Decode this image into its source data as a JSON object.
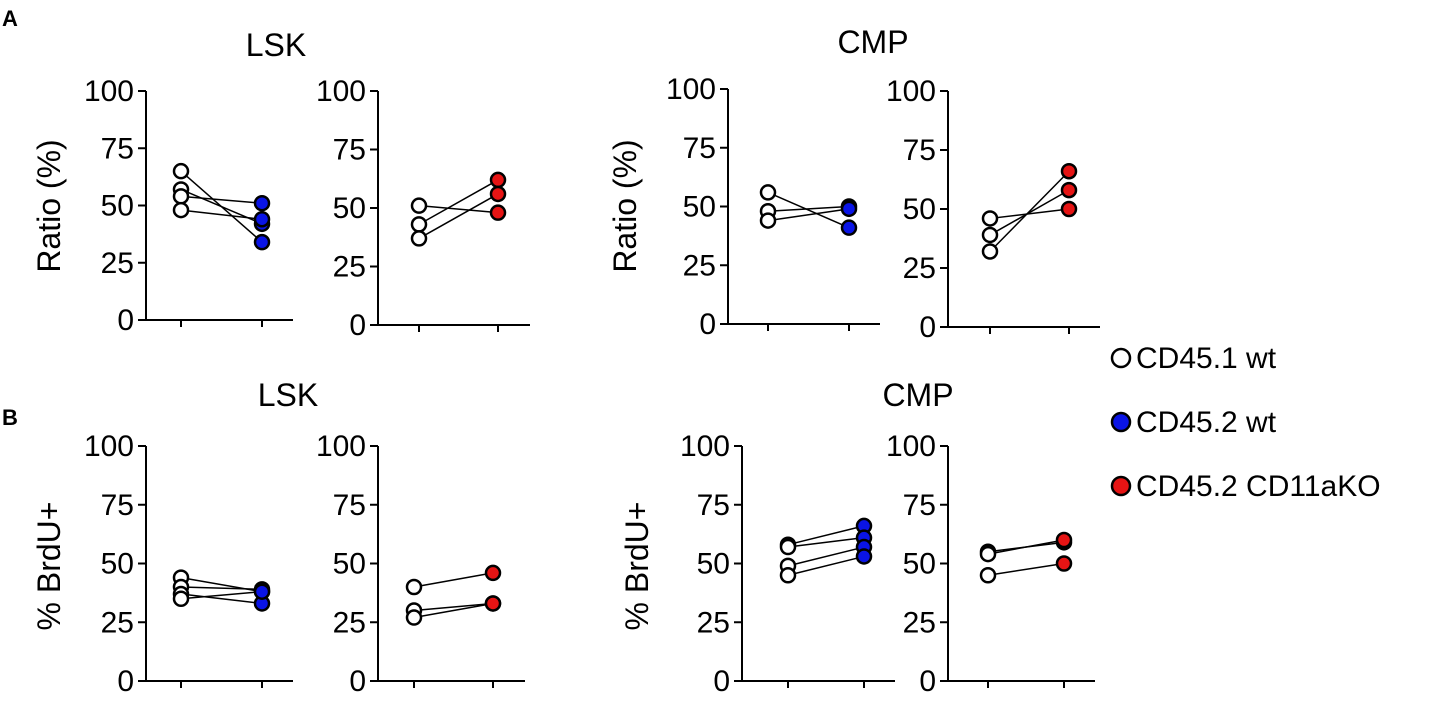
{
  "panel_letters": {
    "a": "A",
    "b": "B"
  },
  "titles": {
    "a_left": "LSK",
    "a_right": "CMP",
    "b_left": "LSK",
    "b_right": "CMP"
  },
  "y_labels": {
    "a": "Ratio (%)",
    "b": "% BrdU+"
  },
  "legend": [
    {
      "label": "CD45.1 wt",
      "fill": "#ffffff"
    },
    {
      "label": "CD45.2 wt",
      "fill": "#0a14e6"
    },
    {
      "label": "CD45.2 CD11aKO",
      "fill": "#e61414"
    }
  ],
  "colors": {
    "wt1": "#ffffff",
    "wt2": "#0a14e6",
    "ko": "#e61414",
    "stroke": "#000000"
  },
  "chart_data": [
    {
      "id": "A-LSK-wt",
      "type": "scatter",
      "panel": "A",
      "title": "LSK",
      "ylabel": "Ratio (%)",
      "ylim": [
        0,
        100
      ],
      "yticks": [
        0,
        25,
        50,
        75,
        100
      ],
      "groups": [
        "CD45.1 wt",
        "CD45.2 wt"
      ],
      "pairs": [
        [
          65,
          34
        ],
        [
          57,
          42
        ],
        [
          54,
          51
        ],
        [
          48,
          44
        ]
      ]
    },
    {
      "id": "A-LSK-ko",
      "type": "scatter",
      "panel": "A",
      "title": "LSK",
      "ylabel": "",
      "ylim": [
        0,
        100
      ],
      "yticks": [
        0,
        25,
        50,
        75,
        100
      ],
      "groups": [
        "CD45.1 wt",
        "CD45.2 CD11aKO"
      ],
      "pairs": [
        [
          51,
          48
        ],
        [
          43,
          62
        ],
        [
          37,
          56
        ]
      ]
    },
    {
      "id": "A-CMP-wt",
      "type": "scatter",
      "panel": "A",
      "title": "CMP",
      "ylabel": "Ratio (%)",
      "ylim": [
        0,
        100
      ],
      "yticks": [
        0,
        25,
        50,
        75,
        100
      ],
      "groups": [
        "CD45.1 wt",
        "CD45.2 wt"
      ],
      "pairs": [
        [
          56,
          41
        ],
        [
          48,
          50
        ],
        [
          44,
          49
        ]
      ]
    },
    {
      "id": "A-CMP-ko",
      "type": "scatter",
      "panel": "A",
      "title": "CMP",
      "ylabel": "",
      "ylim": [
        0,
        100
      ],
      "yticks": [
        0,
        25,
        50,
        75,
        100
      ],
      "groups": [
        "CD45.1 wt",
        "CD45.2 CD11aKO"
      ],
      "pairs": [
        [
          46,
          50
        ],
        [
          39,
          58
        ],
        [
          32,
          66
        ]
      ]
    },
    {
      "id": "B-LSK-wt",
      "type": "scatter",
      "panel": "B",
      "title": "LSK",
      "ylabel": "% BrdU+",
      "ylim": [
        0,
        100
      ],
      "yticks": [
        0,
        25,
        50,
        75,
        100
      ],
      "groups": [
        "CD45.1 wt",
        "CD45.2 wt"
      ],
      "pairs": [
        [
          44,
          38
        ],
        [
          40,
          39
        ],
        [
          37,
          33
        ],
        [
          35,
          38
        ]
      ]
    },
    {
      "id": "B-LSK-ko",
      "type": "scatter",
      "panel": "B",
      "title": "LSK",
      "ylabel": "",
      "ylim": [
        0,
        100
      ],
      "yticks": [
        0,
        25,
        50,
        75,
        100
      ],
      "groups": [
        "CD45.1 wt",
        "CD45.2 CD11aKO"
      ],
      "pairs": [
        [
          40,
          46
        ],
        [
          30,
          33
        ],
        [
          27,
          33
        ]
      ]
    },
    {
      "id": "B-CMP-wt",
      "type": "scatter",
      "panel": "B",
      "title": "CMP",
      "ylabel": "% BrdU+",
      "ylim": [
        0,
        100
      ],
      "yticks": [
        0,
        25,
        50,
        75,
        100
      ],
      "groups": [
        "CD45.1 wt",
        "CD45.2 wt"
      ],
      "pairs": [
        [
          58,
          66
        ],
        [
          57,
          61
        ],
        [
          49,
          57
        ],
        [
          45,
          53
        ]
      ]
    },
    {
      "id": "B-CMP-ko",
      "type": "scatter",
      "panel": "B",
      "title": "CMP",
      "ylabel": "",
      "ylim": [
        0,
        100
      ],
      "yticks": [
        0,
        25,
        50,
        75,
        100
      ],
      "groups": [
        "CD45.1 wt",
        "CD45.2 CD11aKO"
      ],
      "pairs": [
        [
          55,
          59
        ],
        [
          54,
          60
        ],
        [
          45,
          50
        ]
      ]
    }
  ]
}
